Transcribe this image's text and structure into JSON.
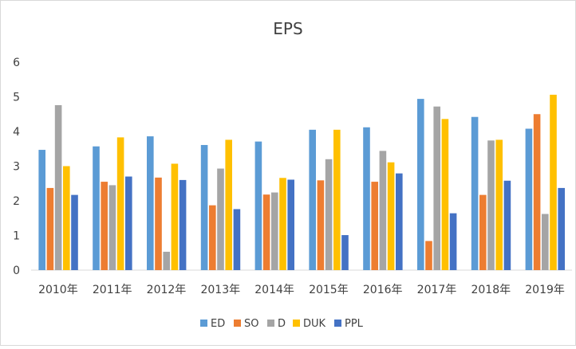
{
  "chart_data": {
    "type": "bar",
    "title": "EPS",
    "xlabel": "",
    "ylabel": "",
    "ylim": [
      0,
      6
    ],
    "yticks": [
      "0",
      "1",
      "2",
      "3",
      "4",
      "5",
      "6"
    ],
    "grid": false,
    "legend_position": "bottom",
    "categories": [
      "2010年",
      "2011年",
      "2012年",
      "2013年",
      "2014年",
      "2015年",
      "2016年",
      "2017年",
      "2018年",
      "2019年"
    ],
    "series": [
      {
        "name": "ED",
        "color": "#5B9BD5",
        "values": [
          3.47,
          3.57,
          3.86,
          3.61,
          3.71,
          4.05,
          4.12,
          4.94,
          4.42,
          4.08
        ]
      },
      {
        "name": "SO",
        "color": "#ED7D31",
        "values": [
          2.37,
          2.55,
          2.67,
          1.87,
          2.18,
          2.59,
          2.55,
          0.84,
          2.17,
          4.5
        ]
      },
      {
        "name": "D",
        "color": "#A5A5A5",
        "values": [
          4.76,
          2.45,
          0.53,
          2.93,
          2.24,
          3.2,
          3.44,
          4.72,
          3.74,
          1.62
        ]
      },
      {
        "name": "DUK",
        "color": "#FFC000",
        "values": [
          3.0,
          3.83,
          3.07,
          3.76,
          2.66,
          4.05,
          3.11,
          4.36,
          3.76,
          5.06
        ]
      },
      {
        "name": "PPL",
        "color": "#4472C4",
        "values": [
          2.17,
          2.7,
          2.6,
          1.76,
          2.61,
          1.01,
          2.79,
          1.64,
          2.58,
          2.37
        ]
      }
    ]
  }
}
